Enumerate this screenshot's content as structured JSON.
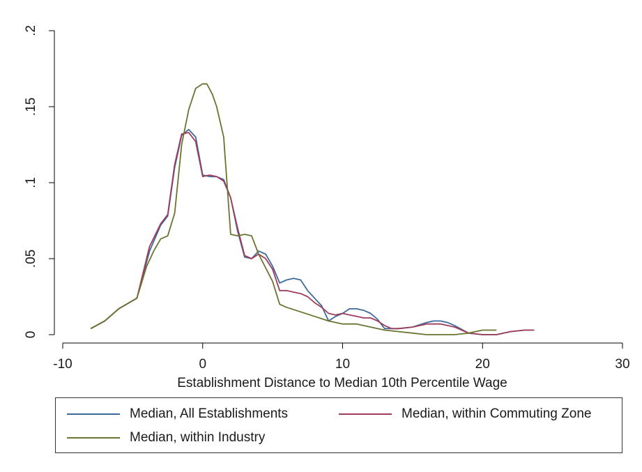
{
  "chart_data": {
    "type": "line",
    "title": "",
    "xlabel": "Establishment Distance to Median 10th Percentile Wage",
    "ylabel": "",
    "xlim": [
      -10,
      30
    ],
    "ylim": [
      0,
      0.2
    ],
    "xticks": [
      -10,
      0,
      10,
      20,
      30
    ],
    "xtick_labels": [
      "-10",
      "0",
      "10",
      "20",
      "30"
    ],
    "yticks": [
      0,
      0.05,
      0.1,
      0.15,
      0.2
    ],
    "ytick_labels": [
      "0",
      ".05",
      ".1",
      ".15",
      ".2"
    ],
    "grid": false,
    "legend_position": "bottom",
    "series": [
      {
        "name": "Median, All Establishments",
        "color": "#3c6a9a",
        "points": [
          [
            -8,
            0.004
          ],
          [
            -7,
            0.009
          ],
          [
            -6,
            0.017
          ],
          [
            -4.7,
            0.024
          ],
          [
            -3.8,
            0.055
          ],
          [
            -3,
            0.072
          ],
          [
            -2.5,
            0.078
          ],
          [
            -2,
            0.11
          ],
          [
            -1.5,
            0.131
          ],
          [
            -1,
            0.135
          ],
          [
            -0.5,
            0.13
          ],
          [
            0,
            0.105
          ],
          [
            0.5,
            0.104
          ],
          [
            1,
            0.104
          ],
          [
            1.5,
            0.102
          ],
          [
            2,
            0.09
          ],
          [
            2.5,
            0.068
          ],
          [
            3,
            0.051
          ],
          [
            3.5,
            0.05
          ],
          [
            4,
            0.055
          ],
          [
            4.5,
            0.053
          ],
          [
            5,
            0.045
          ],
          [
            5.5,
            0.034
          ],
          [
            6,
            0.036
          ],
          [
            6.5,
            0.037
          ],
          [
            7,
            0.036
          ],
          [
            7.5,
            0.029
          ],
          [
            8.5,
            0.019
          ],
          [
            9,
            0.009
          ],
          [
            9.5,
            0.012
          ],
          [
            10,
            0.014
          ],
          [
            10.5,
            0.017
          ],
          [
            11,
            0.017
          ],
          [
            11.5,
            0.016
          ],
          [
            12,
            0.014
          ],
          [
            12.5,
            0.01
          ],
          [
            13,
            0.004
          ],
          [
            13.5,
            0.004
          ],
          [
            14,
            0.004
          ],
          [
            15,
            0.005
          ],
          [
            16,
            0.008
          ],
          [
            16.5,
            0.009
          ],
          [
            17,
            0.009
          ],
          [
            17.5,
            0.008
          ],
          [
            18,
            0.006
          ],
          [
            19,
            0.001
          ],
          [
            20,
            0.0
          ],
          [
            21,
            0.0
          ],
          [
            22,
            0.002
          ],
          [
            23,
            0.003
          ],
          [
            23.5,
            0.003
          ]
        ]
      },
      {
        "name": "Median, within Commuting Zone",
        "color": "#a03c5a",
        "points": [
          [
            -8,
            0.004
          ],
          [
            -7,
            0.009
          ],
          [
            -6,
            0.017
          ],
          [
            -4.7,
            0.024
          ],
          [
            -3.8,
            0.058
          ],
          [
            -3,
            0.073
          ],
          [
            -2.5,
            0.079
          ],
          [
            -2,
            0.112
          ],
          [
            -1.5,
            0.132
          ],
          [
            -1,
            0.133
          ],
          [
            -0.5,
            0.127
          ],
          [
            0,
            0.104
          ],
          [
            0.5,
            0.105
          ],
          [
            1,
            0.104
          ],
          [
            1.5,
            0.101
          ],
          [
            2,
            0.09
          ],
          [
            2.5,
            0.07
          ],
          [
            3,
            0.052
          ],
          [
            3.5,
            0.05
          ],
          [
            4,
            0.053
          ],
          [
            4.5,
            0.05
          ],
          [
            5,
            0.043
          ],
          [
            5.5,
            0.029
          ],
          [
            6,
            0.029
          ],
          [
            6.5,
            0.028
          ],
          [
            7,
            0.027
          ],
          [
            7.5,
            0.025
          ],
          [
            8,
            0.021
          ],
          [
            8.5,
            0.018
          ],
          [
            9,
            0.014
          ],
          [
            9.5,
            0.013
          ],
          [
            10,
            0.014
          ],
          [
            10.5,
            0.013
          ],
          [
            11,
            0.012
          ],
          [
            11.5,
            0.011
          ],
          [
            12,
            0.011
          ],
          [
            12.5,
            0.009
          ],
          [
            13,
            0.006
          ],
          [
            13.5,
            0.004
          ],
          [
            14,
            0.004
          ],
          [
            15,
            0.005
          ],
          [
            16,
            0.007
          ],
          [
            17,
            0.007
          ],
          [
            17.5,
            0.006
          ],
          [
            18,
            0.005
          ],
          [
            19,
            0.001
          ],
          [
            20,
            0.0
          ],
          [
            21,
            0.0
          ],
          [
            22,
            0.002
          ],
          [
            23,
            0.003
          ],
          [
            23.7,
            0.003
          ]
        ]
      },
      {
        "name": "Median, within Industry",
        "color": "#6b7330",
        "points": [
          [
            -8,
            0.004
          ],
          [
            -7,
            0.009
          ],
          [
            -6,
            0.017
          ],
          [
            -4.7,
            0.024
          ],
          [
            -4,
            0.045
          ],
          [
            -3.5,
            0.055
          ],
          [
            -3,
            0.063
          ],
          [
            -2.5,
            0.065
          ],
          [
            -2,
            0.08
          ],
          [
            -1.5,
            0.125
          ],
          [
            -1,
            0.148
          ],
          [
            -0.5,
            0.162
          ],
          [
            0,
            0.165
          ],
          [
            0.3,
            0.165
          ],
          [
            0.7,
            0.158
          ],
          [
            1,
            0.15
          ],
          [
            1.5,
            0.13
          ],
          [
            2,
            0.066
          ],
          [
            2.5,
            0.065
          ],
          [
            3,
            0.066
          ],
          [
            3.5,
            0.065
          ],
          [
            4,
            0.053
          ],
          [
            5,
            0.035
          ],
          [
            5.5,
            0.02
          ],
          [
            6,
            0.018
          ],
          [
            7,
            0.015
          ],
          [
            8,
            0.012
          ],
          [
            9,
            0.009
          ],
          [
            10,
            0.007
          ],
          [
            11,
            0.007
          ],
          [
            12,
            0.005
          ],
          [
            13,
            0.003
          ],
          [
            14,
            0.002
          ],
          [
            15,
            0.001
          ],
          [
            16,
            0.0
          ],
          [
            18,
            0.0
          ],
          [
            19,
            0.001
          ],
          [
            20,
            0.003
          ],
          [
            21,
            0.003
          ]
        ]
      }
    ]
  }
}
